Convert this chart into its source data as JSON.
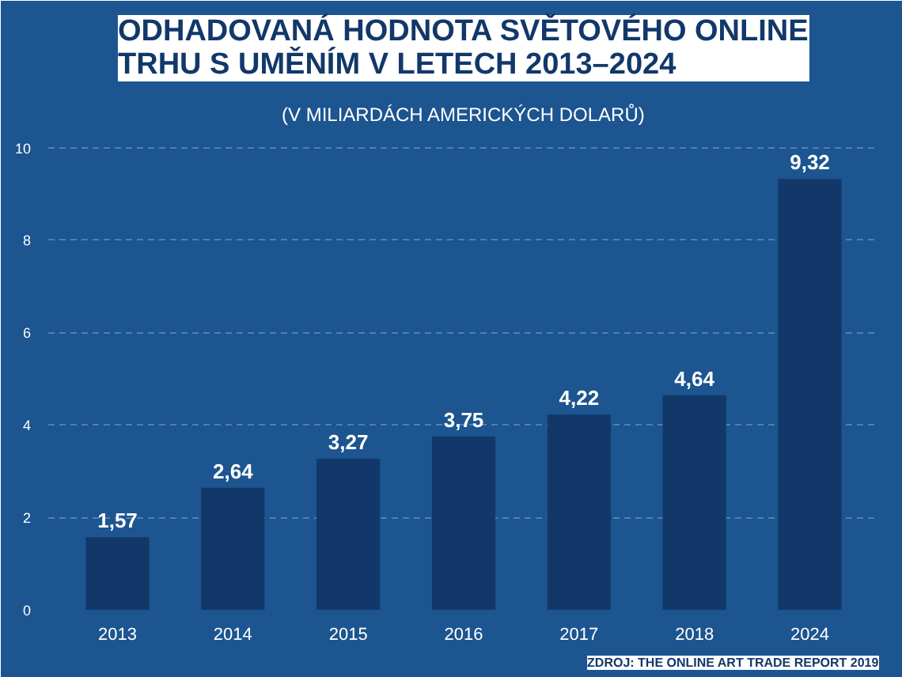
{
  "chart_data": {
    "type": "bar",
    "title": "ODHADOVANÁ HODNOTA SVĚTOVÉHO ONLINE\nTRHU S UMĚNÍM V LETECH 2013–2024",
    "subtitle": "(V MILIARDÁCH AMERICKÝCH DOLARŮ)",
    "categories": [
      "2013",
      "2014",
      "2015",
      "2016",
      "2017",
      "2018",
      "2024"
    ],
    "values": [
      1.57,
      2.64,
      3.27,
      3.75,
      4.22,
      4.64,
      9.32
    ],
    "value_labels": [
      "1,57",
      "2,64",
      "3,27",
      "3,75",
      "4,22",
      "4,64",
      "9,32"
    ],
    "color": "#12386a",
    "ylim": [
      0,
      10.3
    ],
    "yticks": [
      0,
      2,
      4,
      6,
      8,
      10
    ],
    "grid": "y",
    "annotations": [
      "ZDROJ: THE ONLINE ART TRADE REPORT 2019"
    ]
  }
}
